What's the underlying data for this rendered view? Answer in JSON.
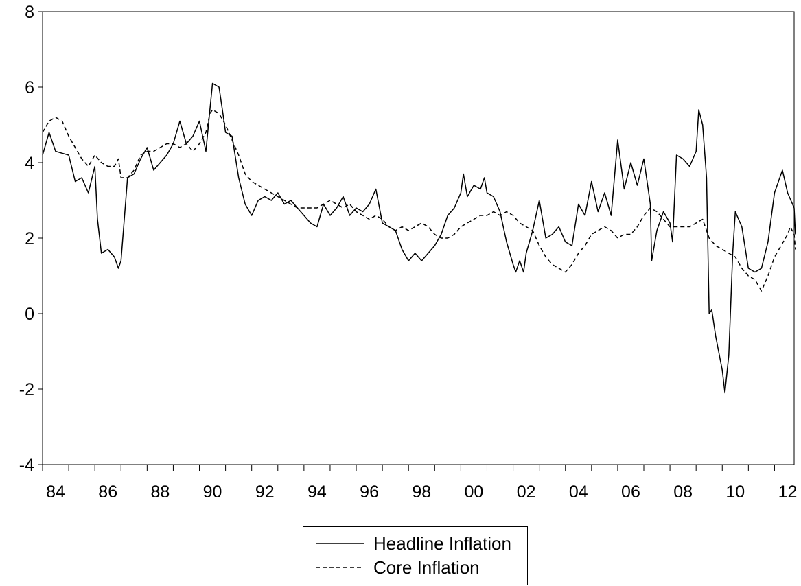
{
  "chart_data": {
    "type": "line",
    "title": "",
    "xlabel": "",
    "ylabel": "",
    "xlim": [
      1984.0,
      2012.75
    ],
    "ylim": [
      -4,
      8
    ],
    "y_ticks": [
      "-4",
      "-2",
      "0",
      "2",
      "4",
      "6",
      "8"
    ],
    "x_ticks": [
      {
        "x": 1984.5,
        "label": "84"
      },
      {
        "x": 1986.5,
        "label": "86"
      },
      {
        "x": 1988.5,
        "label": "88"
      },
      {
        "x": 1990.5,
        "label": "90"
      },
      {
        "x": 1992.5,
        "label": "92"
      },
      {
        "x": 1994.5,
        "label": "94"
      },
      {
        "x": 1996.5,
        "label": "96"
      },
      {
        "x": 1998.5,
        "label": "98"
      },
      {
        "x": 2000.5,
        "label": "00"
      },
      {
        "x": 2002.5,
        "label": "02"
      },
      {
        "x": 2004.5,
        "label": "04"
      },
      {
        "x": 2006.5,
        "label": "06"
      },
      {
        "x": 2008.5,
        "label": "08"
      },
      {
        "x": 2010.5,
        "label": "10"
      },
      {
        "x": 2012.5,
        "label": "12"
      }
    ],
    "grid": false,
    "legend_position": "bottom-center",
    "series": [
      {
        "name": "Headline Inflation",
        "style": "solid",
        "color": "#000000",
        "points": [
          [
            1984.0,
            4.2
          ],
          [
            1984.25,
            4.8
          ],
          [
            1984.5,
            4.3
          ],
          [
            1984.75,
            4.25
          ],
          [
            1985.0,
            4.2
          ],
          [
            1985.25,
            3.5
          ],
          [
            1985.5,
            3.6
          ],
          [
            1985.75,
            3.2
          ],
          [
            1986.0,
            3.9
          ],
          [
            1986.1,
            2.5
          ],
          [
            1986.25,
            1.6
          ],
          [
            1986.5,
            1.7
          ],
          [
            1986.75,
            1.5
          ],
          [
            1986.9,
            1.2
          ],
          [
            1987.0,
            1.4
          ],
          [
            1987.25,
            3.6
          ],
          [
            1987.5,
            3.7
          ],
          [
            1987.75,
            4.1
          ],
          [
            1988.0,
            4.4
          ],
          [
            1988.25,
            3.8
          ],
          [
            1988.5,
            4.0
          ],
          [
            1988.75,
            4.2
          ],
          [
            1989.0,
            4.5
          ],
          [
            1989.25,
            5.1
          ],
          [
            1989.5,
            4.5
          ],
          [
            1989.75,
            4.7
          ],
          [
            1990.0,
            5.1
          ],
          [
            1990.25,
            4.3
          ],
          [
            1990.4,
            5.4
          ],
          [
            1990.5,
            6.1
          ],
          [
            1990.75,
            6.0
          ],
          [
            1990.9,
            5.3
          ],
          [
            1991.0,
            4.8
          ],
          [
            1991.25,
            4.7
          ],
          [
            1991.5,
            3.6
          ],
          [
            1991.75,
            2.9
          ],
          [
            1992.0,
            2.6
          ],
          [
            1992.25,
            3.0
          ],
          [
            1992.5,
            3.1
          ],
          [
            1992.75,
            3.0
          ],
          [
            1993.0,
            3.2
          ],
          [
            1993.25,
            2.9
          ],
          [
            1993.5,
            3.0
          ],
          [
            1993.75,
            2.8
          ],
          [
            1994.0,
            2.6
          ],
          [
            1994.25,
            2.4
          ],
          [
            1994.5,
            2.3
          ],
          [
            1994.75,
            2.9
          ],
          [
            1995.0,
            2.6
          ],
          [
            1995.25,
            2.8
          ],
          [
            1995.5,
            3.1
          ],
          [
            1995.75,
            2.6
          ],
          [
            1996.0,
            2.8
          ],
          [
            1996.25,
            2.7
          ],
          [
            1996.5,
            2.9
          ],
          [
            1996.75,
            3.3
          ],
          [
            1997.0,
            2.4
          ],
          [
            1997.25,
            2.3
          ],
          [
            1997.5,
            2.2
          ],
          [
            1997.75,
            1.7
          ],
          [
            1998.0,
            1.4
          ],
          [
            1998.25,
            1.6
          ],
          [
            1998.5,
            1.4
          ],
          [
            1998.75,
            1.6
          ],
          [
            1999.0,
            1.8
          ],
          [
            1999.25,
            2.1
          ],
          [
            1999.5,
            2.6
          ],
          [
            1999.75,
            2.8
          ],
          [
            2000.0,
            3.2
          ],
          [
            2000.1,
            3.7
          ],
          [
            2000.25,
            3.1
          ],
          [
            2000.5,
            3.4
          ],
          [
            2000.75,
            3.3
          ],
          [
            2000.9,
            3.6
          ],
          [
            2001.0,
            3.2
          ],
          [
            2001.25,
            3.1
          ],
          [
            2001.5,
            2.7
          ],
          [
            2001.75,
            1.9
          ],
          [
            2002.0,
            1.3
          ],
          [
            2002.1,
            1.1
          ],
          [
            2002.25,
            1.4
          ],
          [
            2002.4,
            1.1
          ],
          [
            2002.5,
            1.6
          ],
          [
            2002.75,
            2.2
          ],
          [
            2003.0,
            3.0
          ],
          [
            2003.25,
            2.0
          ],
          [
            2003.5,
            2.1
          ],
          [
            2003.75,
            2.3
          ],
          [
            2004.0,
            1.9
          ],
          [
            2004.25,
            1.8
          ],
          [
            2004.5,
            2.9
          ],
          [
            2004.75,
            2.6
          ],
          [
            2005.0,
            3.5
          ],
          [
            2005.25,
            2.7
          ],
          [
            2005.5,
            3.2
          ],
          [
            2005.75,
            2.6
          ],
          [
            2006.0,
            4.6
          ],
          [
            2006.25,
            3.3
          ],
          [
            2006.5,
            4.0
          ],
          [
            2006.75,
            3.4
          ],
          [
            2007.0,
            4.1
          ],
          [
            2007.25,
            2.9
          ],
          [
            2007.3,
            1.4
          ],
          [
            2007.5,
            2.2
          ],
          [
            2007.75,
            2.7
          ],
          [
            2008.0,
            2.4
          ],
          [
            2008.1,
            1.9
          ],
          [
            2008.25,
            4.2
          ],
          [
            2008.5,
            4.1
          ],
          [
            2008.75,
            3.9
          ],
          [
            2009.0,
            4.3
          ],
          [
            2009.1,
            5.4
          ],
          [
            2009.25,
            5.0
          ],
          [
            2009.4,
            3.6
          ],
          [
            2009.5,
            0.0
          ],
          [
            2009.6,
            0.1
          ],
          [
            2009.75,
            -0.6
          ],
          [
            2010.0,
            -1.5
          ],
          [
            2010.1,
            -2.1
          ],
          [
            2010.25,
            -1.1
          ],
          [
            2010.4,
            1.6
          ],
          [
            2010.5,
            2.7
          ],
          [
            2010.75,
            2.3
          ],
          [
            2011.0,
            1.2
          ],
          [
            2011.25,
            1.1
          ],
          [
            2011.5,
            1.2
          ],
          [
            2011.75,
            1.9
          ],
          [
            2012.0,
            3.2
          ],
          [
            2012.1,
            3.4
          ],
          [
            2012.25,
            3.7
          ],
          [
            2012.3,
            3.8
          ],
          [
            2012.5,
            3.2
          ],
          [
            2012.75,
            2.8
          ],
          [
            2012.8,
            2.1
          ]
        ]
      },
      {
        "name": "Core Inflation",
        "style": "dashed",
        "color": "#000000",
        "points": [
          [
            1984.0,
            4.8
          ],
          [
            1984.25,
            5.1
          ],
          [
            1984.5,
            5.2
          ],
          [
            1984.75,
            5.1
          ],
          [
            1985.0,
            4.7
          ],
          [
            1985.25,
            4.4
          ],
          [
            1985.5,
            4.1
          ],
          [
            1985.75,
            3.9
          ],
          [
            1986.0,
            4.2
          ],
          [
            1986.25,
            4.0
          ],
          [
            1986.5,
            3.9
          ],
          [
            1986.75,
            3.9
          ],
          [
            1986.9,
            4.1
          ],
          [
            1987.0,
            3.6
          ],
          [
            1987.25,
            3.6
          ],
          [
            1987.5,
            3.8
          ],
          [
            1987.75,
            4.2
          ],
          [
            1988.0,
            4.3
          ],
          [
            1988.25,
            4.3
          ],
          [
            1988.5,
            4.4
          ],
          [
            1988.75,
            4.5
          ],
          [
            1989.0,
            4.5
          ],
          [
            1989.25,
            4.4
          ],
          [
            1989.5,
            4.5
          ],
          [
            1989.75,
            4.3
          ],
          [
            1990.0,
            4.5
          ],
          [
            1990.25,
            4.8
          ],
          [
            1990.4,
            5.3
          ],
          [
            1990.5,
            5.4
          ],
          [
            1990.75,
            5.3
          ],
          [
            1991.0,
            5.0
          ],
          [
            1991.25,
            4.6
          ],
          [
            1991.5,
            4.2
          ],
          [
            1991.75,
            3.7
          ],
          [
            1992.0,
            3.5
          ],
          [
            1992.25,
            3.4
          ],
          [
            1992.5,
            3.3
          ],
          [
            1992.75,
            3.2
          ],
          [
            1993.0,
            3.1
          ],
          [
            1993.25,
            3.0
          ],
          [
            1993.5,
            2.9
          ],
          [
            1993.75,
            2.8
          ],
          [
            1994.0,
            2.8
          ],
          [
            1994.25,
            2.8
          ],
          [
            1994.5,
            2.8
          ],
          [
            1994.75,
            2.9
          ],
          [
            1995.0,
            3.0
          ],
          [
            1995.25,
            2.9
          ],
          [
            1995.5,
            2.8
          ],
          [
            1995.75,
            2.9
          ],
          [
            1996.0,
            2.7
          ],
          [
            1996.25,
            2.6
          ],
          [
            1996.5,
            2.5
          ],
          [
            1996.75,
            2.6
          ],
          [
            1997.0,
            2.5
          ],
          [
            1997.25,
            2.3
          ],
          [
            1997.5,
            2.2
          ],
          [
            1997.75,
            2.3
          ],
          [
            1998.0,
            2.2
          ],
          [
            1998.25,
            2.3
          ],
          [
            1998.5,
            2.4
          ],
          [
            1998.75,
            2.3
          ],
          [
            1999.0,
            2.1
          ],
          [
            1999.25,
            2.0
          ],
          [
            1999.5,
            2.0
          ],
          [
            1999.75,
            2.1
          ],
          [
            2000.0,
            2.3
          ],
          [
            2000.25,
            2.4
          ],
          [
            2000.5,
            2.5
          ],
          [
            2000.75,
            2.6
          ],
          [
            2001.0,
            2.6
          ],
          [
            2001.25,
            2.7
          ],
          [
            2001.5,
            2.6
          ],
          [
            2001.75,
            2.7
          ],
          [
            2002.0,
            2.6
          ],
          [
            2002.25,
            2.4
          ],
          [
            2002.5,
            2.3
          ],
          [
            2002.75,
            2.2
          ],
          [
            2003.0,
            1.8
          ],
          [
            2003.25,
            1.5
          ],
          [
            2003.5,
            1.3
          ],
          [
            2003.75,
            1.2
          ],
          [
            2004.0,
            1.1
          ],
          [
            2004.25,
            1.3
          ],
          [
            2004.5,
            1.6
          ],
          [
            2004.75,
            1.8
          ],
          [
            2005.0,
            2.1
          ],
          [
            2005.25,
            2.2
          ],
          [
            2005.5,
            2.3
          ],
          [
            2005.75,
            2.2
          ],
          [
            2006.0,
            2.0
          ],
          [
            2006.25,
            2.1
          ],
          [
            2006.5,
            2.1
          ],
          [
            2006.75,
            2.3
          ],
          [
            2007.0,
            2.6
          ],
          [
            2007.25,
            2.8
          ],
          [
            2007.5,
            2.7
          ],
          [
            2007.75,
            2.5
          ],
          [
            2008.0,
            2.3
          ],
          [
            2008.25,
            2.3
          ],
          [
            2008.5,
            2.3
          ],
          [
            2008.75,
            2.3
          ],
          [
            2009.0,
            2.4
          ],
          [
            2009.25,
            2.5
          ],
          [
            2009.5,
            2.0
          ],
          [
            2009.75,
            1.8
          ],
          [
            2010.0,
            1.7
          ],
          [
            2010.25,
            1.6
          ],
          [
            2010.5,
            1.5
          ],
          [
            2010.75,
            1.2
          ],
          [
            2011.0,
            1.0
          ],
          [
            2011.25,
            0.9
          ],
          [
            2011.5,
            0.6
          ],
          [
            2011.75,
            1.0
          ],
          [
            2012.0,
            1.5
          ],
          [
            2012.25,
            1.8
          ],
          [
            2012.5,
            2.1
          ],
          [
            2012.6,
            2.3
          ],
          [
            2012.75,
            2.1
          ],
          [
            2012.8,
            1.7
          ]
        ]
      }
    ]
  }
}
